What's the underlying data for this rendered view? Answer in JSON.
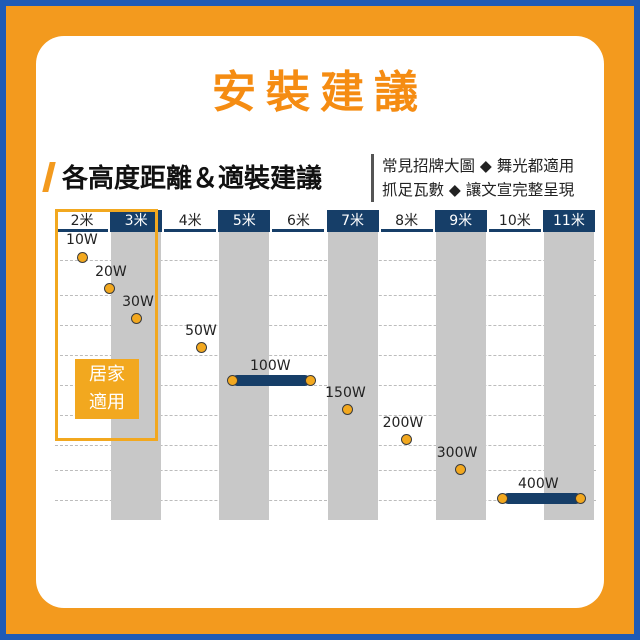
{
  "title": "安裝建議",
  "subtitle": "各高度距離＆適裝建議",
  "note": [
    "常見招牌大圖 ◆ 舞光都適用",
    "抓足瓦數 ◆ 讓文宣完整呈現"
  ],
  "home_label": [
    "居家",
    "適用"
  ],
  "heights": [
    "2米",
    "3米",
    "4米",
    "5米",
    "6米",
    "7米",
    "8米",
    "9米",
    "10米",
    "11米"
  ],
  "wattages": [
    "10W",
    "20W",
    "30W",
    "50W",
    "100W",
    "150W",
    "200W",
    "300W",
    "400W"
  ],
  "colors": {
    "orange": "#f39a1e",
    "blue_frame": "#1f5bb6",
    "navy": "#163e68",
    "gray": "#c8c8c8"
  }
}
